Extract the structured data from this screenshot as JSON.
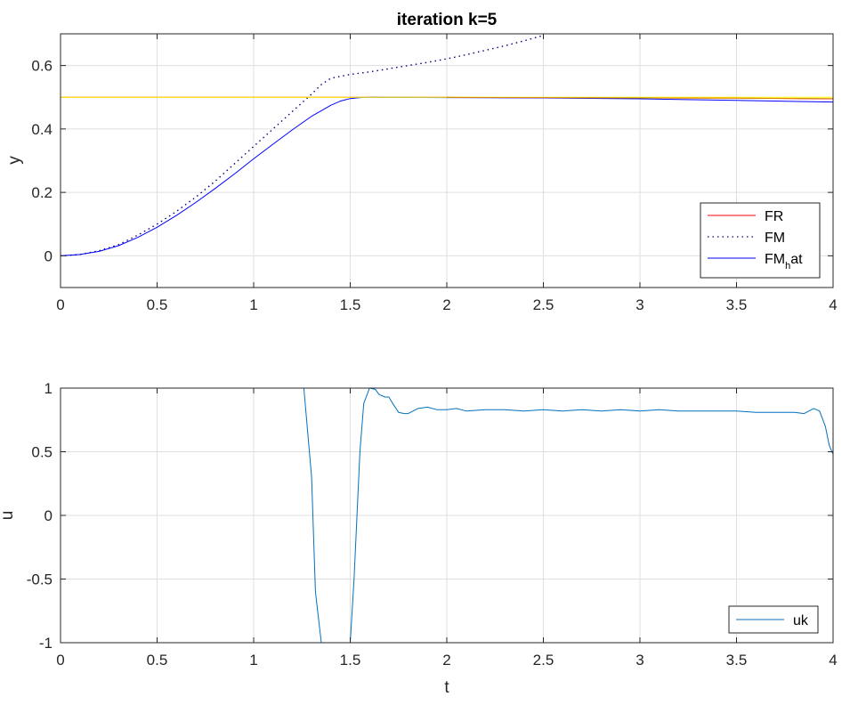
{
  "chart_data": [
    {
      "type": "line",
      "title": "iteration k=5",
      "xlabel": "",
      "ylabel": "y",
      "xlim": [
        0,
        4
      ],
      "ylim": [
        -0.1,
        0.7
      ],
      "xticks": [
        0,
        0.5,
        1,
        1.5,
        2,
        2.5,
        3,
        3.5,
        4
      ],
      "yticks": [
        0,
        0.2,
        0.4,
        0.6
      ],
      "xtick_labels": [
        "0",
        "0.5",
        "1",
        "1.5",
        "2",
        "2.5",
        "3",
        "3.5",
        "4"
      ],
      "ytick_labels": [
        "0",
        "0.2",
        "0.4",
        "0.6"
      ],
      "grid": true,
      "legend_position": "bottom-right",
      "series": [
        {
          "name": "FR",
          "color": "#ff0000",
          "style": "solid",
          "in_legend": true,
          "x": [
            0,
            0.5,
            1,
            1.5,
            2,
            2.5,
            3,
            3.5,
            4
          ],
          "y": [
            0.5,
            0.5,
            0.5,
            0.5,
            0.5,
            0.499,
            0.498,
            0.497,
            0.495
          ]
        },
        {
          "name": "FM",
          "color": "#000080",
          "style": "dotted",
          "in_legend": true,
          "x": [
            0,
            0.1,
            0.2,
            0.3,
            0.4,
            0.5,
            0.6,
            0.7,
            0.8,
            0.9,
            1.0,
            1.1,
            1.2,
            1.3,
            1.35,
            1.4,
            1.5,
            1.6,
            1.7,
            1.8,
            1.9,
            2.0,
            2.1,
            2.2,
            2.3,
            2.4,
            2.5
          ],
          "y": [
            0,
            0.004,
            0.016,
            0.035,
            0.065,
            0.1,
            0.14,
            0.185,
            0.235,
            0.29,
            0.345,
            0.4,
            0.455,
            0.51,
            0.54,
            0.56,
            0.572,
            0.58,
            0.59,
            0.6,
            0.61,
            0.621,
            0.634,
            0.648,
            0.662,
            0.678,
            0.695
          ]
        },
        {
          "name": "FM_hat",
          "color": "#0000ff",
          "style": "solid",
          "in_legend": true,
          "x": [
            0,
            0.1,
            0.2,
            0.3,
            0.4,
            0.5,
            0.6,
            0.7,
            0.8,
            0.9,
            1.0,
            1.1,
            1.2,
            1.3,
            1.4,
            1.45,
            1.5,
            1.55,
            1.6,
            2.0,
            2.5,
            3.0,
            3.5,
            4.0
          ],
          "y": [
            0,
            0.004,
            0.014,
            0.032,
            0.058,
            0.09,
            0.127,
            0.168,
            0.212,
            0.258,
            0.306,
            0.352,
            0.397,
            0.44,
            0.475,
            0.488,
            0.496,
            0.499,
            0.5,
            0.499,
            0.498,
            0.495,
            0.49,
            0.485
          ]
        },
        {
          "name": "",
          "color": "#ffff00",
          "style": "solid",
          "in_legend": false,
          "x": [
            0,
            4
          ],
          "y": [
            0.5,
            0.5
          ]
        },
        {
          "name": "",
          "color": "#d98c00",
          "style": "solid",
          "in_legend": false,
          "x": [
            2.0,
            2.5,
            3.0,
            3.5,
            4.0
          ],
          "y": [
            0.5,
            0.499,
            0.498,
            0.497,
            0.496
          ]
        }
      ],
      "legend": [
        {
          "text": "FR",
          "color": "#ff0000",
          "style": "solid"
        },
        {
          "text": "FM",
          "color": "#000080",
          "style": "dotted"
        },
        {
          "text": "FM",
          "sub": "h",
          "after": "at",
          "color": "#0000ff",
          "style": "solid"
        }
      ]
    },
    {
      "type": "line",
      "title": "",
      "xlabel": "t",
      "ylabel": "u",
      "xlim": [
        0,
        4
      ],
      "ylim": [
        -1,
        1
      ],
      "xticks": [
        0,
        0.5,
        1,
        1.5,
        2,
        2.5,
        3,
        3.5,
        4
      ],
      "yticks": [
        -1,
        -0.5,
        0,
        0.5,
        1
      ],
      "xtick_labels": [
        "0",
        "0.5",
        "1",
        "1.5",
        "2",
        "2.5",
        "3",
        "3.5",
        "4"
      ],
      "ytick_labels": [
        "-1",
        "-0.5",
        "0",
        "0.5",
        "1"
      ],
      "grid": true,
      "legend_position": "bottom-right",
      "series": [
        {
          "name": "uk",
          "color": "#0072bd",
          "style": "solid",
          "in_legend": true,
          "x": [
            0,
            1.26,
            1.3,
            1.32,
            1.35,
            1.5,
            1.52,
            1.55,
            1.57,
            1.6,
            1.63,
            1.65,
            1.68,
            1.7,
            1.72,
            1.75,
            1.78,
            1.8,
            1.85,
            1.9,
            1.95,
            2.0,
            2.05,
            2.1,
            2.2,
            2.3,
            2.4,
            2.5,
            2.6,
            2.7,
            2.8,
            2.9,
            3.0,
            3.1,
            3.2,
            3.3,
            3.4,
            3.5,
            3.6,
            3.7,
            3.8,
            3.85,
            3.9,
            3.93,
            3.96,
            3.98,
            4.0
          ],
          "y": [
            1,
            1,
            0.3,
            -0.6,
            -1,
            -1,
            -0.5,
            0.5,
            0.88,
            1.0,
            0.99,
            0.95,
            0.93,
            0.93,
            0.88,
            0.81,
            0.8,
            0.8,
            0.84,
            0.85,
            0.83,
            0.83,
            0.84,
            0.82,
            0.83,
            0.83,
            0.82,
            0.83,
            0.82,
            0.83,
            0.82,
            0.83,
            0.82,
            0.83,
            0.82,
            0.82,
            0.82,
            0.82,
            0.81,
            0.81,
            0.81,
            0.8,
            0.84,
            0.82,
            0.7,
            0.55,
            0.48
          ]
        }
      ],
      "legend": [
        {
          "text": "uk",
          "color": "#0072bd",
          "style": "solid"
        }
      ]
    }
  ]
}
